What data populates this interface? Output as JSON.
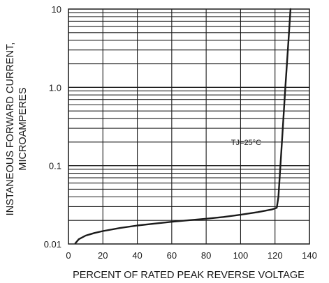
{
  "chart_data": {
    "type": "line",
    "title": "",
    "xlabel": "PERCENT OF RATED PEAK REVERSE VOLTAGE",
    "ylabel_lines": [
      "INSTANEOUS FORWARD CURRENT,",
      "MICROAMPERES"
    ],
    "xlim": [
      0,
      140
    ],
    "ylim": [
      0.01,
      10
    ],
    "yscale": "log",
    "grid": true,
    "x_ticks": [
      0,
      20,
      40,
      60,
      80,
      100,
      120,
      140
    ],
    "x_tick_labels": [
      "0",
      "20",
      "40",
      "60",
      "80",
      "100",
      "120",
      "140"
    ],
    "y_ticks": [
      0.01,
      0.1,
      1.0,
      10
    ],
    "y_tick_labels": [
      "0.01",
      "0.1",
      "1.0",
      "10"
    ],
    "annotation": {
      "text": "TJ=25°C",
      "x": 100,
      "y": 0.2
    },
    "series": [
      {
        "x": [
          4,
          6,
          10,
          15,
          20,
          30,
          40,
          50,
          60,
          70,
          80,
          90,
          100,
          110,
          118,
          121,
          122,
          124,
          126,
          128,
          129
        ],
        "y": [
          0.0102,
          0.0115,
          0.0128,
          0.0138,
          0.0146,
          0.016,
          0.0172,
          0.0182,
          0.0192,
          0.0201,
          0.021,
          0.0221,
          0.0236,
          0.0255,
          0.0275,
          0.029,
          0.04,
          0.2,
          1.0,
          4.5,
          10
        ]
      }
    ]
  }
}
